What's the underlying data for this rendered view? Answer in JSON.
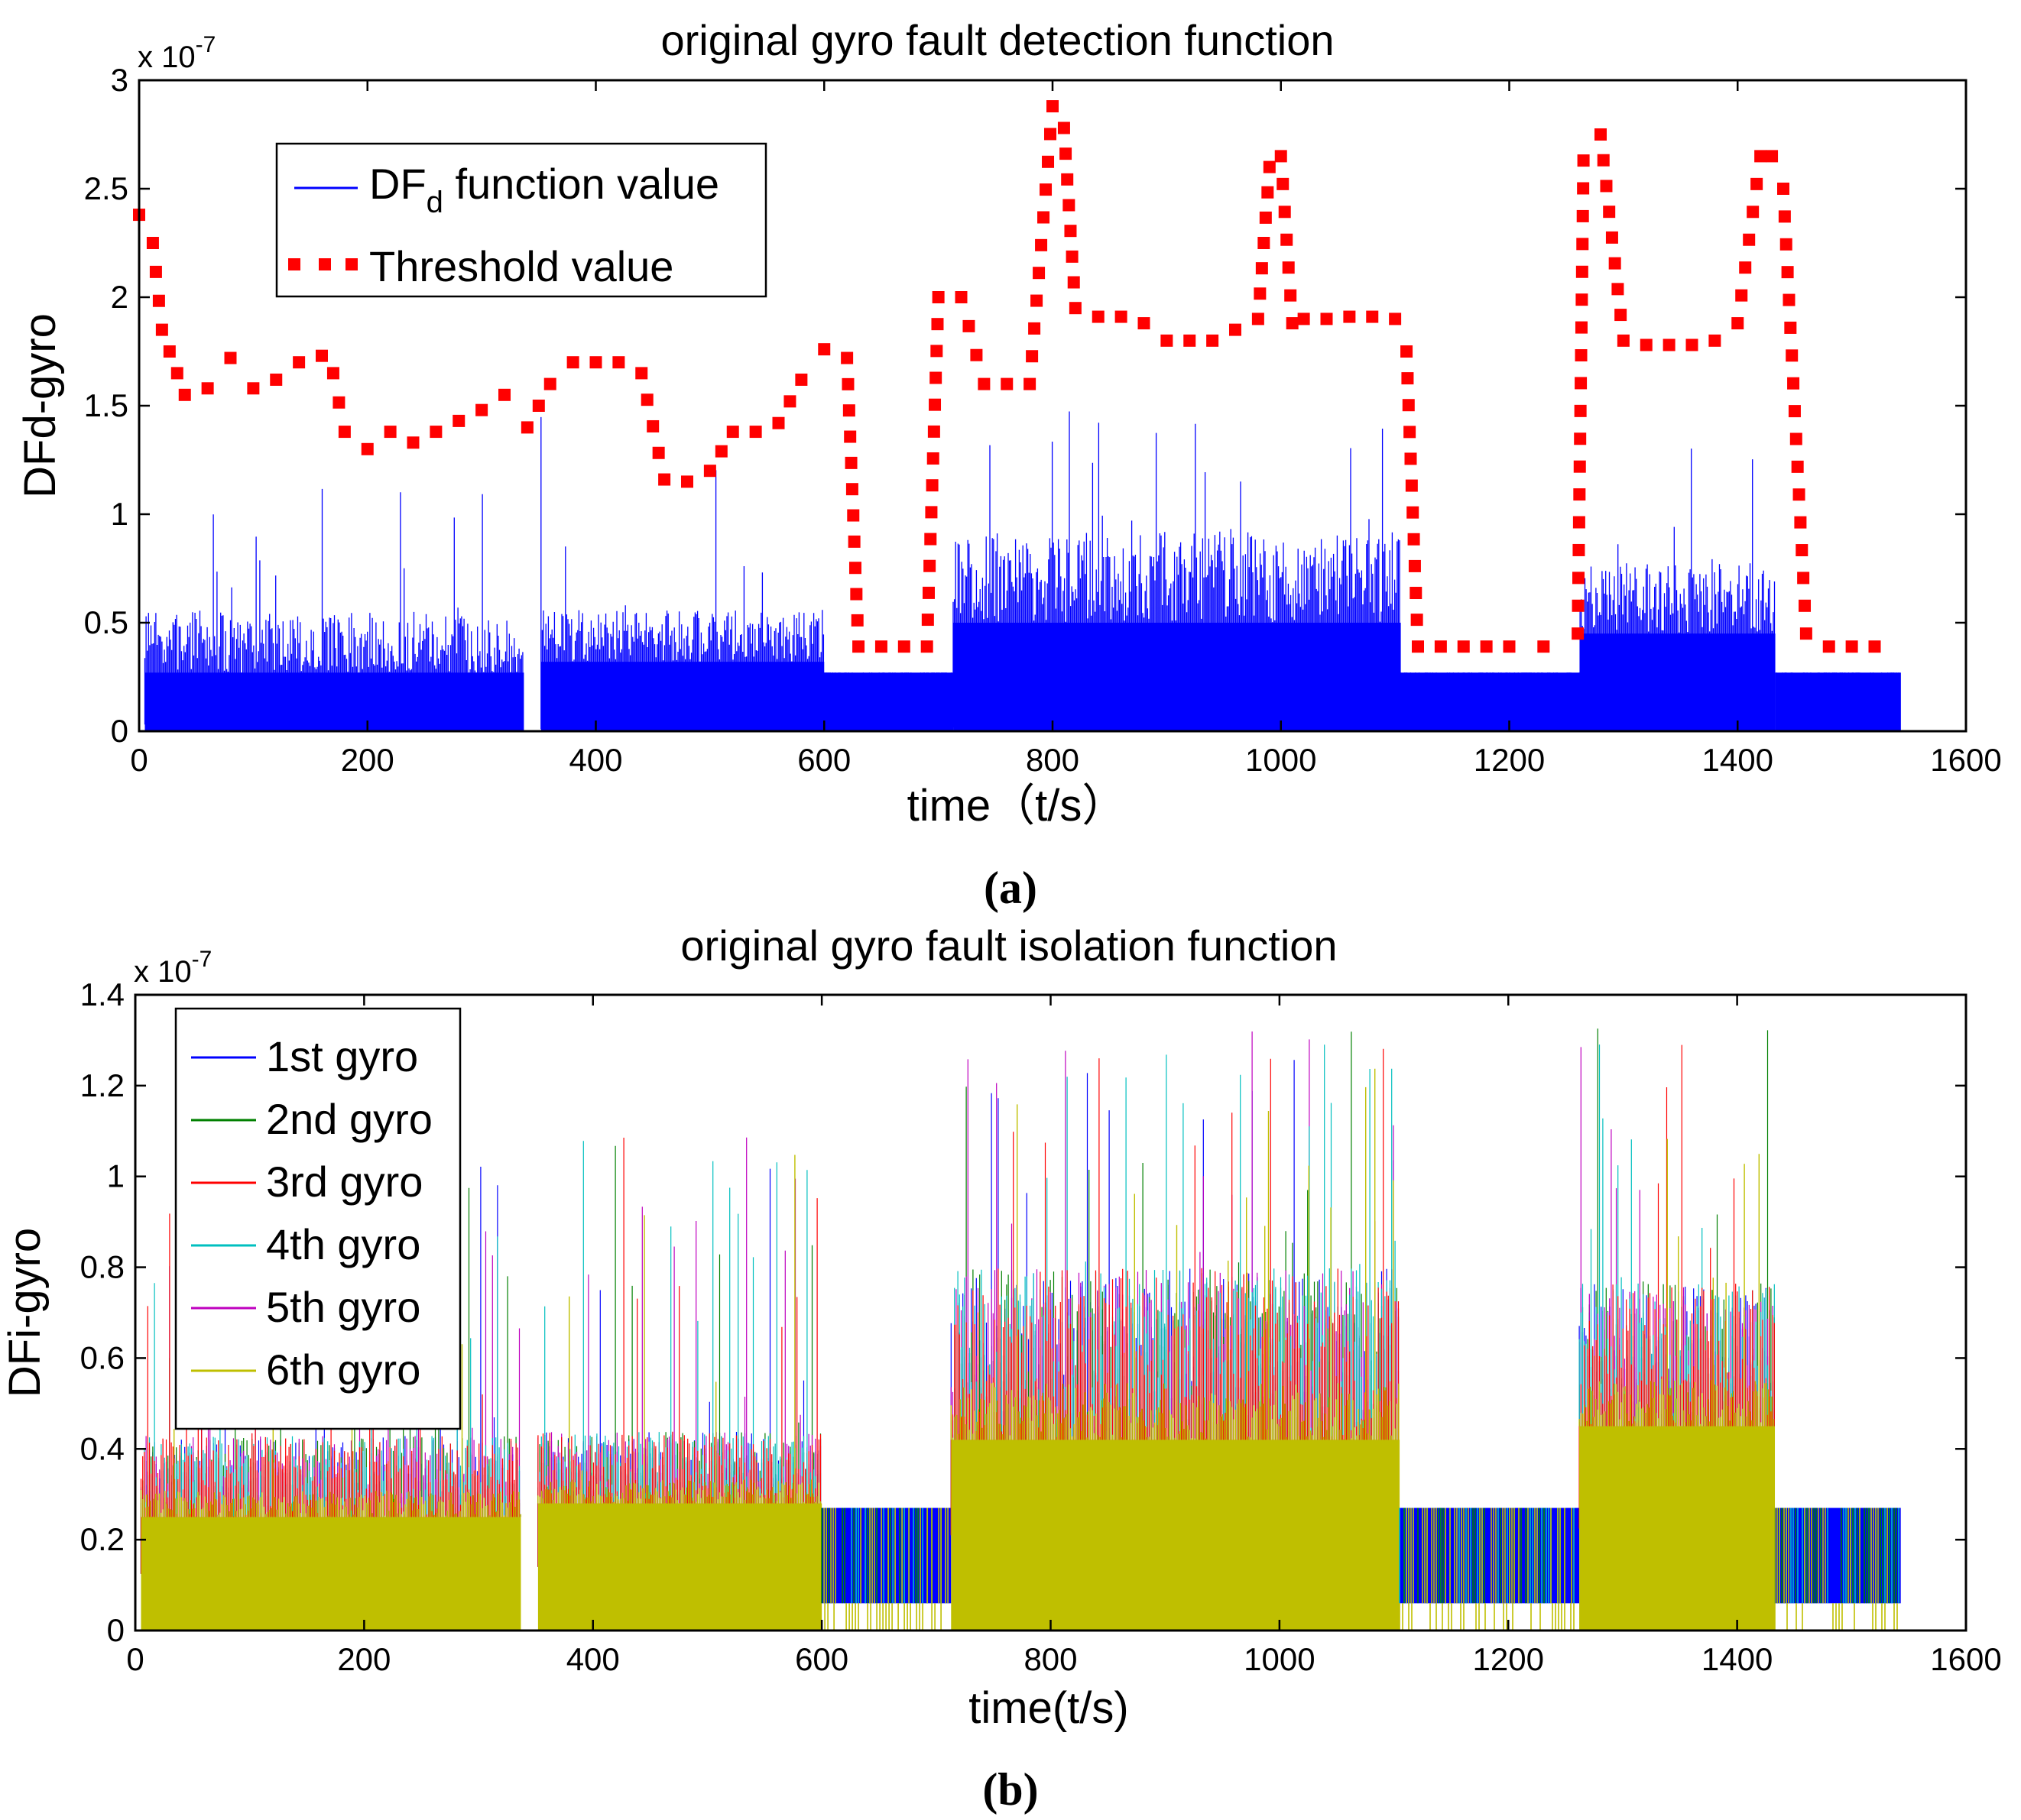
{
  "chart_data": [
    {
      "panel_label": "(a)",
      "type": "line",
      "title": "original gyro fault detection function",
      "xlabel": "time（t/s）",
      "ylabel": "DFd-gyro",
      "exponent_label": "x 10",
      "exponent_power": "-7",
      "xlim": [
        0,
        1600
      ],
      "ylim": [
        0,
        3
      ],
      "xticks": [
        0,
        200,
        400,
        600,
        800,
        1000,
        1200,
        1400,
        1600
      ],
      "yticks": [
        0,
        0.5,
        1,
        1.5,
        2,
        2.5,
        3
      ],
      "ytick_labels": [
        "0",
        "0.5",
        "1",
        "1.5",
        "2",
        "2.5",
        "3"
      ],
      "legend_position": "top-left",
      "legend": [
        {
          "name": "DF",
          "subscript": "d",
          "suffix": " function value",
          "color": "#0000ff",
          "style": "solid"
        },
        {
          "name": "Threshold value",
          "color": "#ff0000",
          "style": "dotted-square"
        }
      ],
      "df_segments": [
        {
          "x0": 5,
          "x1": 337,
          "base": 0.27,
          "peak": 0.55,
          "spike": 1.12
        },
        {
          "x0": 352,
          "x1": 600,
          "base": 0.32,
          "peak": 0.56,
          "spike": 1.55
        },
        {
          "x0": 600,
          "x1": 713,
          "base": 0.27,
          "peak": 0.27,
          "spike": 0.27
        },
        {
          "x0": 713,
          "x1": 1105,
          "base": 0.5,
          "peak": 0.92,
          "spike": 1.5
        },
        {
          "x0": 1105,
          "x1": 1262,
          "base": 0.27,
          "peak": 0.27,
          "spike": 0.27
        },
        {
          "x0": 1262,
          "x1": 1433,
          "base": 0.45,
          "peak": 0.78,
          "spike": 1.4
        },
        {
          "x0": 1433,
          "x1": 1543,
          "base": 0.27,
          "peak": 0.27,
          "spike": 0.27
        }
      ],
      "threshold": {
        "x": [
          0,
          12,
          20,
          40,
          60,
          80,
          100,
          120,
          140,
          160,
          170,
          180,
          200,
          220,
          240,
          260,
          280,
          300,
          320,
          340,
          360,
          380,
          400,
          420,
          440,
          460,
          480,
          500,
          520,
          540,
          560,
          580,
          600,
          620,
          630,
          650,
          670,
          690,
          700,
          720,
          740,
          760,
          780,
          800,
          810,
          820,
          840,
          860,
          880,
          900,
          920,
          940,
          960,
          980,
          990,
          1000,
          1010,
          1020,
          1040,
          1060,
          1080,
          1100,
          1110,
          1120,
          1140,
          1160,
          1180,
          1200,
          1230,
          1260,
          1265,
          1280,
          1300,
          1320,
          1340,
          1360,
          1380,
          1400,
          1420,
          1430,
          1440,
          1460,
          1480,
          1500,
          1520
        ],
        "y": [
          2.38,
          2.25,
          1.85,
          1.55,
          1.58,
          1.72,
          1.58,
          1.62,
          1.7,
          1.73,
          1.65,
          1.38,
          1.3,
          1.38,
          1.33,
          1.38,
          1.43,
          1.48,
          1.55,
          1.4,
          1.6,
          1.7,
          1.7,
          1.7,
          1.65,
          1.16,
          1.15,
          1.2,
          1.38,
          1.38,
          1.42,
          1.62,
          1.76,
          1.72,
          0.39,
          0.39,
          0.39,
          0.39,
          2.0,
          2.0,
          1.6,
          1.6,
          1.6,
          2.88,
          2.78,
          1.95,
          1.91,
          1.91,
          1.88,
          1.8,
          1.8,
          1.8,
          1.85,
          1.9,
          2.6,
          2.65,
          1.88,
          1.9,
          1.9,
          1.91,
          1.91,
          1.9,
          1.75,
          0.39,
          0.39,
          0.39,
          0.39,
          0.39,
          0.39,
          0.45,
          2.63,
          2.75,
          1.8,
          1.78,
          1.78,
          1.78,
          1.8,
          1.88,
          2.65,
          2.65,
          2.5,
          0.45,
          0.39,
          0.39,
          0.39
        ]
      }
    },
    {
      "panel_label": "(b)",
      "type": "line",
      "title": "original gyro fault isolation function",
      "xlabel": "time(t/s)",
      "ylabel": "DFi-gyro",
      "exponent_label": "x 10",
      "exponent_power": "-7",
      "xlim": [
        0,
        1600
      ],
      "ylim": [
        0,
        1.4
      ],
      "xticks": [
        0,
        200,
        400,
        600,
        800,
        1000,
        1200,
        1400,
        1600
      ],
      "yticks": [
        0,
        0.2,
        0.4,
        0.6,
        0.8,
        1,
        1.2,
        1.4
      ],
      "ytick_labels": [
        "0",
        "0.2",
        "0.4",
        "0.6",
        "0.8",
        "1",
        "1.2",
        "1.4"
      ],
      "legend_position": "top-left",
      "legend": [
        {
          "name": "1st gyro",
          "color": "#0000ff"
        },
        {
          "name": "2nd gyro",
          "color": "#008000"
        },
        {
          "name": "3rd gyro",
          "color": "#ff0000"
        },
        {
          "name": "4th gyro",
          "color": "#00bfbf"
        },
        {
          "name": "5th gyro",
          "color": "#bf00bf"
        },
        {
          "name": "6th gyro",
          "color": "#bfbf00"
        }
      ],
      "segments": [
        {
          "x0": 5,
          "x1": 337,
          "base": 0.25,
          "fill": 0.42,
          "spike": 1.06,
          "quiet": false
        },
        {
          "x0": 352,
          "x1": 600,
          "base": 0.28,
          "fill": 0.43,
          "spike": 1.09,
          "quiet": false
        },
        {
          "x0": 600,
          "x1": 713,
          "base": 0.06,
          "fill": 0.27,
          "spike": 0.27,
          "quiet": true
        },
        {
          "x0": 713,
          "x1": 1105,
          "base": 0.42,
          "fill": 0.78,
          "spike": 1.33,
          "quiet": false
        },
        {
          "x0": 1105,
          "x1": 1262,
          "base": 0.06,
          "fill": 0.27,
          "spike": 0.27,
          "quiet": true
        },
        {
          "x0": 1262,
          "x1": 1433,
          "base": 0.45,
          "fill": 0.75,
          "spike": 1.36,
          "quiet": false
        },
        {
          "x0": 1433,
          "x1": 1543,
          "base": 0.06,
          "fill": 0.27,
          "spike": 0.27,
          "quiet": true
        }
      ]
    }
  ]
}
